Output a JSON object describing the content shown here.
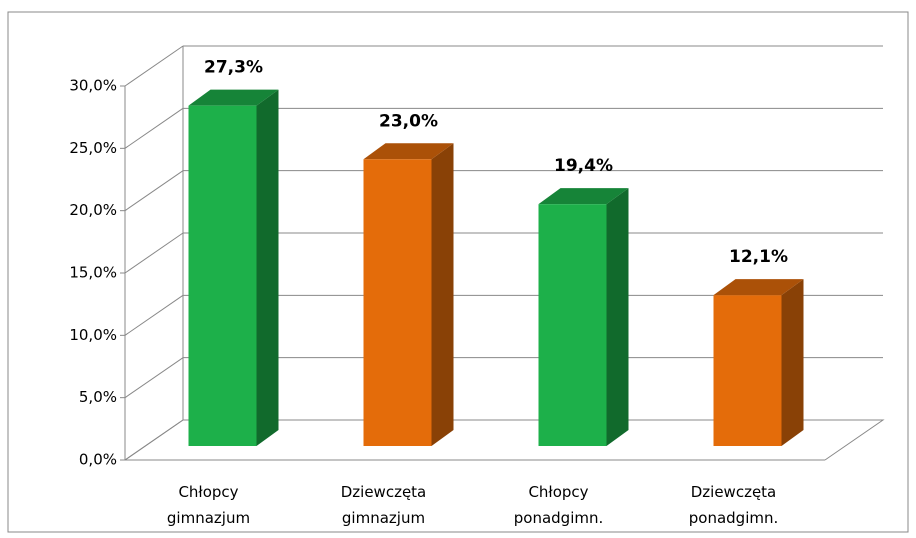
{
  "chart_data": {
    "type": "bar3d",
    "categories": [
      "Chłopcy gimnazjum",
      "Dziewczęta gimnazjum",
      "Chłopcy ponadgimn.",
      "Dziewczęta ponadgimn."
    ],
    "values": [
      27.3,
      23.0,
      19.4,
      12.1
    ],
    "value_labels": [
      "27,3%",
      "23,0%",
      "19,4%",
      "12,1%"
    ],
    "colors": [
      "#1db04a",
      "#e46c0a",
      "#1db04a",
      "#e46c0a"
    ],
    "ylim": [
      0,
      30
    ],
    "yticks": [
      {
        "value": 0,
        "label": "0,0%"
      },
      {
        "value": 5,
        "label": "5,0%"
      },
      {
        "value": 10,
        "label": "10,0%"
      },
      {
        "value": 15,
        "label": "15,0%"
      },
      {
        "value": 20,
        "label": "20,0%"
      },
      {
        "value": 25,
        "label": "25,0%"
      },
      {
        "value": 30,
        "label": "30,0%"
      }
    ],
    "grid": true
  }
}
